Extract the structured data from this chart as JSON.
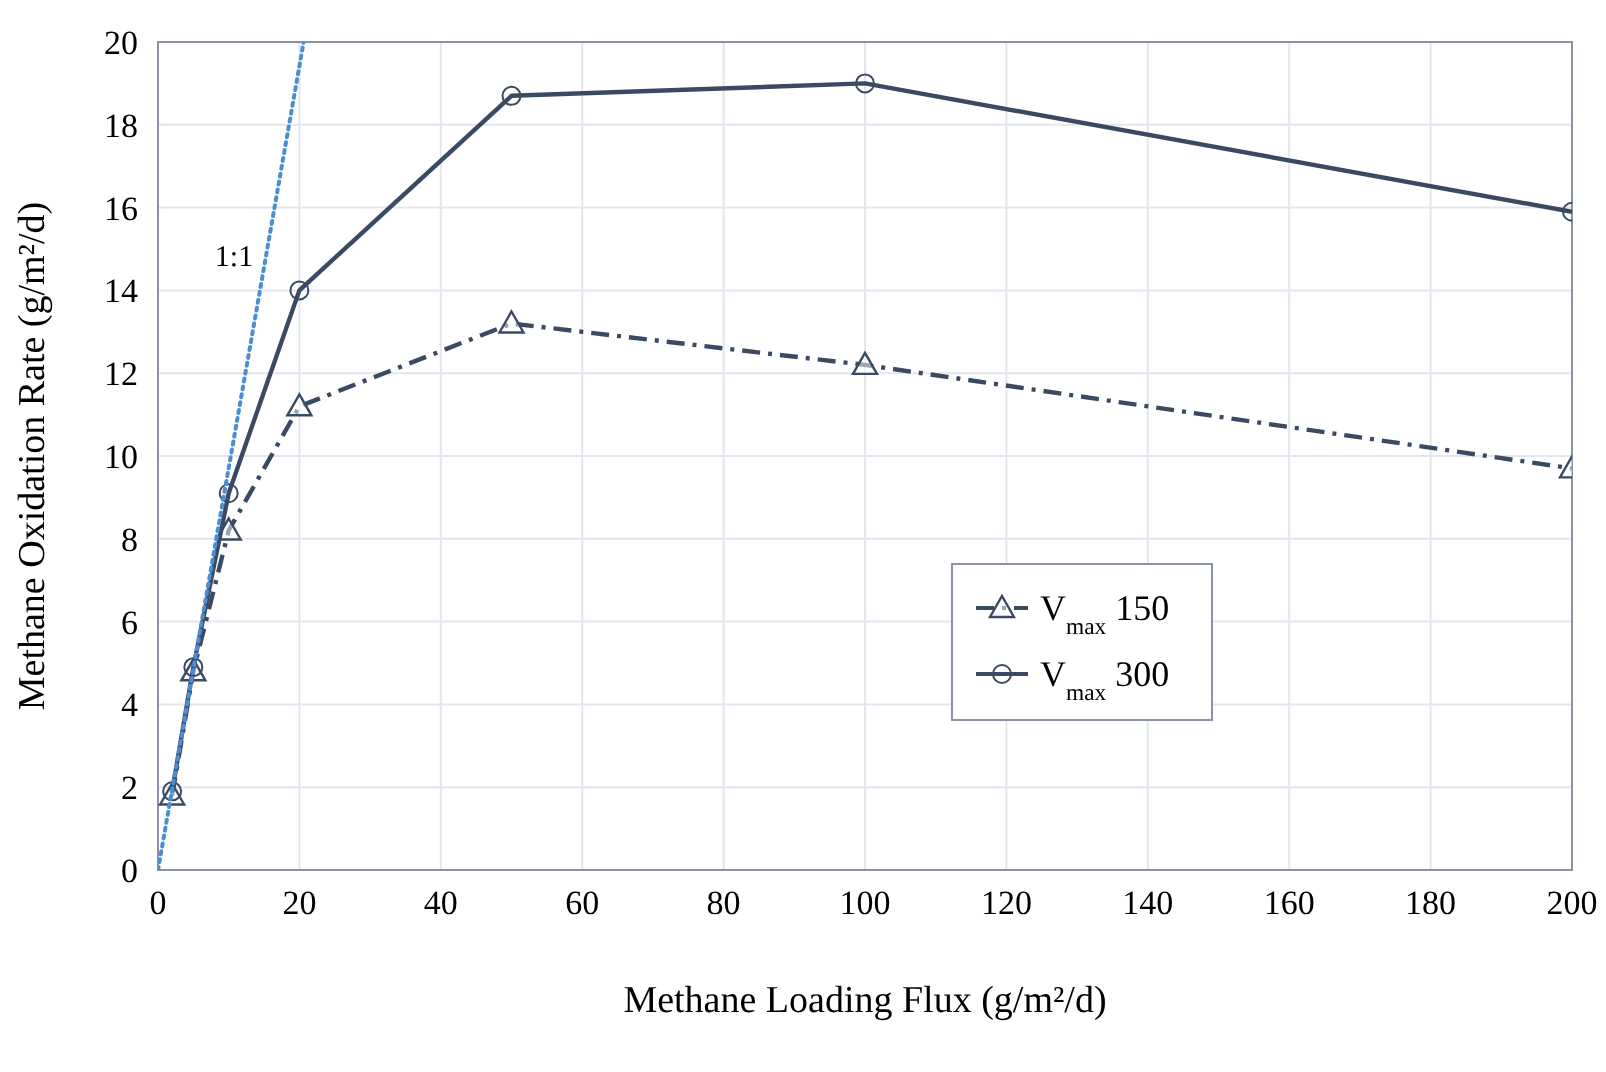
{
  "chart_data": {
    "type": "line",
    "xlabel": "Methane Loading Flux (g/m²/d)",
    "ylabel": "Methane Oxidation Rate (g/m²/d)",
    "xlim": [
      0,
      200
    ],
    "xticks": [
      0,
      20,
      40,
      60,
      80,
      100,
      120,
      140,
      160,
      180,
      200
    ],
    "ylim": [
      0,
      20
    ],
    "yticks": [
      0,
      2,
      4,
      6,
      8,
      10,
      12,
      14,
      16,
      18,
      20
    ],
    "grid": true,
    "legend": "right",
    "series": [
      {
        "name": "V$_{max}$ 150",
        "color": "#3b4a63",
        "x": [
          2,
          5,
          10,
          20,
          50,
          100,
          200
        ],
        "values": [
          1.8,
          4.8,
          8.2,
          11.2,
          13.2,
          12.2,
          9.7
        ],
        "marker": "triangle",
        "line_style": "dashed"
      },
      {
        "name": "V$_{max}$ 300",
        "color": "#3b4a63",
        "x": [
          2,
          5,
          10,
          20,
          50,
          100,
          200
        ],
        "values": [
          1.9,
          4.9,
          9.1,
          14,
          18.7,
          19,
          15.9
        ],
        "marker": "circle",
        "line_style": "solid"
      },
      {
        "color": "#4a8fd4",
        "x": [
          0,
          20.6
        ],
        "values": [
          0,
          20
        ],
        "marker": "none",
        "line_style": "dotted"
      }
    ],
    "annotations": [
      "1:1"
    ]
  }
}
